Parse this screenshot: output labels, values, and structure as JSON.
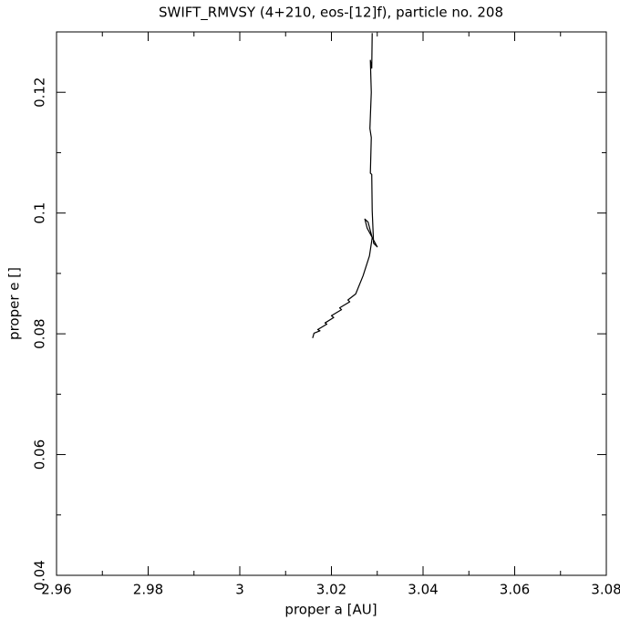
{
  "chart_data": {
    "type": "line",
    "title": "SWIFT_RMVSY (4+210, eos-[12]f), particle no. 208",
    "xlabel": "proper a [AU]",
    "ylabel": "proper e []",
    "color": "#000000",
    "x": [
      3.0159,
      3.0162,
      3.0175,
      3.017,
      3.019,
      3.0186,
      3.0205,
      3.02,
      3.0222,
      3.0218,
      3.024,
      3.0236,
      3.0253,
      3.0269,
      3.0283,
      3.0289,
      3.028,
      3.0273,
      3.0278,
      3.03,
      3.0292,
      3.0289,
      3.0288,
      3.0285,
      3.0287,
      3.0284,
      3.0287,
      3.0285,
      3.0288,
      3.0289
    ],
    "values": [
      0.0793,
      0.0801,
      0.0805,
      0.0807,
      0.0816,
      0.0818,
      0.0827,
      0.083,
      0.084,
      0.0843,
      0.0853,
      0.0856,
      0.0866,
      0.0896,
      0.0929,
      0.0959,
      0.0985,
      0.099,
      0.0975,
      0.0944,
      0.095,
      0.1004,
      0.1064,
      0.1066,
      0.1125,
      0.114,
      0.12,
      0.1253,
      0.124,
      0.1298
    ],
    "xlim": [
      2.96,
      3.08
    ],
    "ylim": [
      0.04,
      0.13
    ],
    "xticks": [
      2.96,
      2.98,
      3,
      3.02,
      3.04,
      3.06,
      3.08
    ],
    "yticks": [
      0.04,
      0.06,
      0.08,
      0.1,
      0.12
    ],
    "xminor_ticks": [
      2.97,
      2.99,
      3.01,
      3.03,
      3.05,
      3.07
    ],
    "yminor_ticks": [
      0.05,
      0.07,
      0.09,
      0.11
    ]
  }
}
